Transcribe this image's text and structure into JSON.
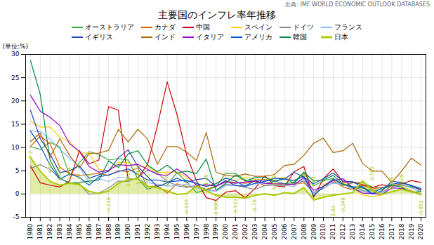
{
  "chart_data": {
    "type": "line",
    "title": "主要国のインフレ率年推移",
    "source": "出典: IMF WORLD ECONOMIC OUTLOOK DATABASES",
    "ylabel": "(単位:%)",
    "x": [
      1980,
      1981,
      1982,
      1983,
      1984,
      1985,
      1986,
      1987,
      1988,
      1989,
      1990,
      1991,
      1992,
      1993,
      1994,
      1995,
      1996,
      1997,
      1998,
      1999,
      2000,
      2001,
      2002,
      2003,
      2004,
      2005,
      2006,
      2007,
      2008,
      2009,
      2010,
      2011,
      2012,
      2013,
      2014,
      2015,
      2016,
      2017,
      2018,
      2019,
      2020
    ],
    "xlim": [
      1979.5,
      2020.5
    ],
    "xticks": [
      1980,
      1981,
      1982,
      1983,
      1984,
      1985,
      1986,
      1987,
      1988,
      1989,
      1990,
      1991,
      1992,
      1993,
      1994,
      1995,
      1996,
      1997,
      1998,
      1999,
      2000,
      2001,
      2002,
      2003,
      2004,
      2005,
      2006,
      2007,
      2008,
      2009,
      2010,
      2011,
      2012,
      2013,
      2014,
      2015,
      2016,
      2017,
      2018,
      2019,
      2020
    ],
    "ylim": [
      -5,
      30
    ],
    "yticks": [
      -5,
      0,
      5,
      10,
      15,
      20,
      25,
      30
    ],
    "grid": true,
    "legend": "top",
    "series": [
      {
        "name": "オーストラリア",
        "color": "#33aa33",
        "type": "line",
        "values": [
          10.2,
          9.6,
          11.1,
          10.1,
          4.0,
          6.7,
          9.1,
          8.5,
          7.3,
          7.6,
          7.3,
          3.2,
          1.0,
          1.8,
          1.9,
          4.6,
          2.6,
          0.3,
          0.9,
          1.5,
          4.5,
          4.4,
          3.0,
          2.8,
          2.3,
          2.7,
          3.5,
          2.3,
          4.4,
          1.8,
          2.8,
          3.4,
          1.8,
          2.4,
          2.5,
          1.5,
          1.3,
          2.0,
          1.9,
          1.6,
          0.9
        ]
      },
      {
        "name": "カナダ",
        "color": "#dd6600",
        "type": "line",
        "values": [
          10.2,
          12.5,
          10.8,
          5.8,
          4.3,
          4.0,
          4.2,
          4.4,
          4.0,
          5.0,
          4.8,
          5.6,
          1.5,
          1.8,
          0.2,
          2.2,
          1.6,
          1.6,
          1.0,
          1.7,
          2.7,
          2.5,
          2.3,
          2.7,
          1.8,
          2.2,
          2.0,
          2.1,
          2.4,
          0.3,
          1.8,
          2.9,
          1.5,
          0.9,
          1.9,
          1.1,
          1.4,
          1.6,
          2.3,
          1.9,
          0.7
        ]
      },
      {
        "name": "中国",
        "color": "#cc0000",
        "type": "line",
        "values": [
          6.0,
          2.4,
          1.9,
          1.5,
          2.8,
          9.3,
          6.5,
          7.3,
          18.8,
          18.0,
          3.1,
          3.4,
          6.4,
          14.7,
          24.1,
          17.1,
          8.3,
          2.8,
          -0.8,
          -1.4,
          0.4,
          0.7,
          -0.8,
          1.2,
          3.9,
          1.8,
          1.5,
          4.8,
          5.9,
          -0.7,
          3.3,
          5.4,
          2.6,
          2.6,
          2.0,
          1.4,
          2.0,
          1.6,
          2.1,
          2.9,
          2.5
        ]
      },
      {
        "name": "スペイン",
        "color": "#ffcc00",
        "type": "line",
        "values": [
          15.7,
          14.4,
          14.4,
          12.2,
          11.3,
          8.8,
          8.8,
          5.3,
          4.9,
          6.8,
          6.7,
          5.9,
          5.9,
          4.6,
          4.7,
          4.7,
          3.6,
          2.0,
          1.8,
          2.3,
          3.5,
          2.8,
          3.6,
          3.1,
          3.1,
          3.4,
          3.5,
          2.8,
          4.1,
          -0.2,
          2.0,
          3.0,
          2.4,
          1.5,
          -0.2,
          -0.6,
          -0.2,
          2.0,
          1.7,
          0.8,
          -0.3
        ]
      },
      {
        "name": "ドイツ",
        "color": "#888888",
        "type": "line",
        "values": [
          5.5,
          6.3,
          5.3,
          3.3,
          2.4,
          2.2,
          -0.1,
          0.2,
          1.3,
          2.8,
          2.7,
          3.6,
          5.1,
          4.5,
          2.7,
          1.8,
          1.4,
          1.9,
          1.0,
          0.6,
          2.1,
          1.9,
          1.4,
          1.0,
          1.8,
          1.9,
          1.8,
          2.3,
          2.8,
          0.2,
          1.2,
          2.5,
          2.1,
          1.6,
          0.8,
          0.1,
          0.4,
          1.7,
          1.9,
          1.4,
          0.4
        ]
      },
      {
        "name": "フランス",
        "color": "#88bbff",
        "type": "line",
        "values": [
          13.6,
          13.4,
          11.8,
          9.6,
          7.7,
          5.8,
          2.5,
          3.3,
          2.7,
          3.6,
          3.4,
          3.2,
          2.4,
          2.1,
          1.7,
          1.8,
          2.1,
          1.3,
          0.7,
          0.6,
          1.8,
          1.8,
          1.9,
          2.2,
          2.3,
          1.9,
          1.9,
          1.6,
          3.2,
          0.1,
          1.7,
          2.3,
          2.2,
          1.0,
          0.6,
          0.1,
          0.3,
          1.2,
          2.1,
          1.3,
          0.5
        ]
      },
      {
        "name": "イギリス",
        "color": "#2244bb",
        "type": "line",
        "values": [
          18.0,
          11.9,
          8.6,
          4.6,
          5.0,
          6.1,
          3.4,
          4.1,
          4.9,
          7.8,
          9.5,
          5.9,
          3.7,
          1.6,
          2.4,
          3.4,
          2.5,
          3.1,
          3.4,
          1.6,
          2.9,
          1.8,
          1.7,
          2.9,
          3.0,
          2.8,
          3.2,
          4.7,
          3.6,
          2.2,
          3.3,
          4.5,
          2.8,
          2.6,
          1.5,
          0.0,
          0.7,
          2.7,
          2.5,
          1.8,
          0.9
        ]
      },
      {
        "name": "インド",
        "color": "#aa6600",
        "type": "line",
        "values": [
          11.3,
          13.1,
          7.9,
          11.9,
          8.3,
          5.6,
          8.7,
          8.8,
          9.4,
          13.9,
          11.2,
          13.9,
          11.8,
          6.4,
          10.2,
          10.2,
          9.0,
          7.2,
          13.2,
          4.7,
          4.0,
          3.8,
          4.3,
          3.8,
          3.8,
          4.2,
          6.1,
          6.4,
          8.3,
          10.9,
          12.0,
          8.9,
          9.3,
          10.9,
          6.6,
          4.9,
          4.9,
          2.5,
          4.9,
          7.7,
          6.2
        ]
      },
      {
        "name": "イタリア",
        "color": "#9900cc",
        "type": "line",
        "values": [
          21.2,
          17.8,
          16.5,
          14.7,
          10.8,
          9.2,
          5.9,
          4.7,
          5.1,
          6.3,
          6.1,
          6.4,
          5.3,
          4.2,
          4.0,
          5.4,
          4.0,
          1.9,
          2.0,
          1.7,
          2.6,
          2.3,
          2.6,
          2.8,
          2.3,
          2.2,
          2.2,
          2.0,
          3.5,
          0.8,
          1.6,
          2.9,
          3.3,
          1.3,
          0.2,
          0.1,
          -0.1,
          1.3,
          1.2,
          0.6,
          -0.1
        ]
      },
      {
        "name": "アメリカ",
        "color": "#0055cc",
        "type": "line",
        "values": [
          13.5,
          10.3,
          6.2,
          3.2,
          4.3,
          3.6,
          1.9,
          3.7,
          4.1,
          4.8,
          5.4,
          4.2,
          3.0,
          3.0,
          2.6,
          2.8,
          2.9,
          2.3,
          1.6,
          2.2,
          3.4,
          2.8,
          1.6,
          2.3,
          2.7,
          3.4,
          3.2,
          2.9,
          3.8,
          -0.4,
          1.6,
          3.2,
          2.1,
          1.5,
          1.6,
          0.1,
          1.3,
          2.1,
          2.4,
          1.8,
          1.2
        ]
      },
      {
        "name": "韓国",
        "color": "#008844",
        "type": "line",
        "values": [
          28.7,
          21.4,
          7.3,
          3.4,
          2.3,
          2.5,
          2.8,
          3.0,
          7.1,
          5.7,
          8.6,
          9.3,
          6.2,
          4.8,
          6.2,
          4.5,
          4.9,
          4.4,
          7.5,
          0.8,
          2.3,
          4.1,
          2.8,
          3.5,
          3.6,
          2.8,
          2.2,
          2.5,
          4.7,
          2.8,
          3.0,
          4.0,
          2.2,
          1.3,
          1.3,
          0.7,
          1.0,
          1.9,
          1.5,
          0.4,
          0.5
        ]
      },
      {
        "name": "日本",
        "color": "#aacc00",
        "type": "area",
        "values": [
          7.8,
          4.9,
          2.7,
          1.9,
          2.3,
          2.0,
          0.6,
          0.1,
          0.7,
          2.3,
          3.1,
          3.3,
          1.7,
          1.3,
          0.7,
          -0.1,
          0.1,
          1.7,
          0.7,
          -0.3,
          -0.7,
          -0.7,
          -0.9,
          -0.3,
          0.0,
          -0.3,
          0.3,
          0.1,
          1.4,
          -1.3,
          -0.7,
          -0.3,
          0.0,
          0.3,
          2.8,
          0.8,
          -0.1,
          0.5,
          1.0,
          0.5,
          0.0
        ]
      }
    ],
    "annotations": [
      {
        "x": 1980,
        "y": 7.2,
        "text": "7.2",
        "position": "above"
      },
      {
        "x": 1982,
        "y": 4.06,
        "text": "4.06",
        "position": "above"
      },
      {
        "x": 1983,
        "y": 2.448,
        "text": "2.448",
        "position": "above"
      },
      {
        "x": 1984,
        "y": 2.344,
        "text": "2.344",
        "position": "above"
      },
      {
        "x": 1985,
        "y": 1.67,
        "text": "1.67",
        "position": "above"
      },
      {
        "x": 1986,
        "y": 1.58,
        "text": "1.58",
        "position": "above"
      },
      {
        "x": 1988,
        "y": -0.218,
        "text": "-0.218",
        "position": "below"
      },
      {
        "x": 1990,
        "y": 1.122,
        "text": "1.122",
        "position": "above"
      },
      {
        "x": 1991,
        "y": 1.594,
        "text": "1.594",
        "position": "above"
      },
      {
        "x": 1992,
        "y": 2.1,
        "text": "2.1",
        "position": "above"
      },
      {
        "x": 1994,
        "y": 1.073,
        "text": "1.073",
        "position": "above"
      },
      {
        "x": 1996,
        "y": -0.635,
        "text": "-0.635",
        "position": "below"
      },
      {
        "x": 1998,
        "y": 1.45,
        "text": "1.45",
        "position": "above"
      },
      {
        "x": 1999,
        "y": -0.996,
        "text": "-0.996",
        "position": "below"
      },
      {
        "x": 2001,
        "y": -0.527,
        "text": "-0.527",
        "position": "below"
      },
      {
        "x": 2003,
        "y": -0.75,
        "text": "-0.75",
        "position": "below"
      },
      {
        "x": 2005,
        "y": 0.519,
        "text": "0.519",
        "position": "above"
      },
      {
        "x": 2009,
        "y": 1.03,
        "text": "1.03",
        "position": "above"
      },
      {
        "x": 2011,
        "y": -2.03,
        "text": "-2.03",
        "position": "below"
      },
      {
        "x": 2012,
        "y": -0.248,
        "text": "-0.248",
        "position": "below"
      },
      {
        "x": 2015,
        "y": 2.505,
        "text": "2.505",
        "position": "above"
      },
      {
        "x": 2017,
        "y": 0.286,
        "text": "0.286",
        "position": "above"
      },
      {
        "x": 2018,
        "y": 0.828,
        "text": "0.828",
        "position": "above"
      },
      {
        "x": 2020,
        "y": -0.852,
        "text": "-0.852",
        "position": "below"
      }
    ]
  }
}
